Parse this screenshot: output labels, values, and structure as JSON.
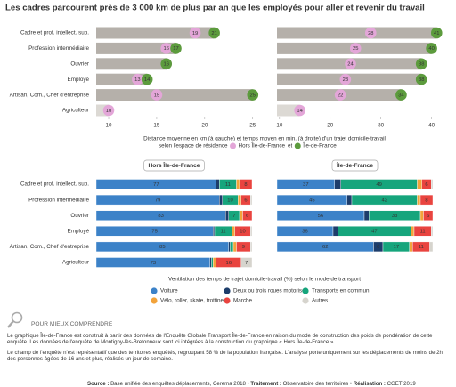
{
  "title": "Les cadres parcourent près de 3 000 km de plus par an que les employés pour aller et revenir du travail",
  "chart_data": [
    {
      "type": "dot",
      "categories": [
        "Cadre et prof. intellect. sup.",
        "Profession intermédiaire",
        "Ouvrier",
        "Employé",
        "Artisan, Com., Chef d'entreprise",
        "Agriculteur"
      ],
      "xlim": [
        8.7,
        25.3
      ],
      "xticks": [
        10,
        15,
        20,
        25
      ],
      "xlabel": [
        "Distance moyenne en km (à gauche) et temps moyen en min. (à droite) d'un trajet domicile-travail",
        "selon l'espace de résidence"
      ],
      "legend_separator": "et",
      "series": [
        {
          "name": "Hors Île-de-France",
          "color": "#e3a6d8",
          "values": [
            19,
            16,
            16,
            13,
            15,
            10
          ]
        },
        {
          "name": "Île-de-France",
          "color": "#5c9b3d",
          "values": [
            21,
            17,
            16,
            14,
            25,
            null
          ]
        }
      ]
    },
    {
      "type": "dot",
      "xlim": [
        9.5,
        40.6
      ],
      "xticks": [
        10,
        20,
        30,
        40
      ],
      "series": [
        {
          "color": "#e3a6d8",
          "values": [
            28,
            25,
            24,
            23,
            22,
            14
          ]
        },
        {
          "color": "#5c9b3d",
          "values": [
            41,
            40,
            38,
            38,
            34,
            null
          ]
        }
      ]
    },
    {
      "type": "stacked-bar",
      "title": "Hors Île-de-France",
      "categories": [
        "Cadre et prof. intellect. sup.",
        "Profession intermédiaire",
        "Ouvrier",
        "Employé",
        "Artisan, Com., Chef d'entreprise",
        "Agriculteur"
      ],
      "xlim": [
        0,
        100
      ],
      "xlabel": "Ventilation des temps de trajet domicile-travail (%) selon le mode de transport",
      "series": [
        {
          "name": "Voiture",
          "color": "#3c82c8",
          "values": [
            77,
            79,
            83,
            75,
            85,
            73
          ]
        },
        {
          "name": "Deux ou trois roues motorisés",
          "color": "#1d3d6b",
          "values": [
            2,
            2,
            2,
            1,
            1,
            1
          ]
        },
        {
          "name": "Transports en commun",
          "color": "#16a57c",
          "values": [
            11,
            10,
            7,
            11,
            2,
            1
          ]
        },
        {
          "name": "Vélo, roller, skate, trottinette",
          "color": "#f2a33a",
          "values": [
            2,
            2,
            2,
            2,
            2,
            2
          ]
        },
        {
          "name": "Marche",
          "color": "#e9443f",
          "values": [
            8,
            6,
            6,
            10,
            9,
            16
          ]
        },
        {
          "name": "Autres",
          "color": "#d6d4cd",
          "values": [
            0,
            1,
            0,
            1,
            1,
            7
          ]
        }
      ]
    },
    {
      "type": "stacked-bar",
      "title": "Île-de-France",
      "xlim": [
        0,
        100
      ],
      "series": [
        {
          "color": "#3c82c8",
          "values": [
            37,
            45,
            56,
            36,
            62,
            null
          ]
        },
        {
          "color": "#1d3d6b",
          "values": [
            4,
            3,
            3,
            3,
            6,
            null
          ]
        },
        {
          "color": "#16a57c",
          "values": [
            49,
            42,
            33,
            47,
            17,
            null
          ]
        },
        {
          "color": "#f2a33a",
          "values": [
            3,
            2,
            2,
            2,
            2,
            null
          ]
        },
        {
          "color": "#e9443f",
          "values": [
            6,
            8,
            6,
            11,
            11,
            null
          ]
        },
        {
          "color": "#d6d4cd",
          "values": [
            1,
            0,
            0,
            1,
            2,
            null
          ]
        }
      ]
    }
  ],
  "notes": {
    "heading": "POUR MIEUX COMPRENDRE",
    "paragraphs": [
      "Le graphique Île-de-France est construit à partir des données de l'Enquête Globale Transport Île-de-France en raison du mode de construction des poids de pondération de cette enquête. Les données de l'enquête de Montigny-lès-Bretonneux sont ici intégrées à la construction du graphique « Hors Île-de-France ».",
      "Le champ de l'enquête n'est représentatif que des territoires enquêtés, regroupant 58 % de la population française. L'analyse porte uniquement sur les déplacements de moins de 2h des personnes âgées de 16 ans et plus, réalisés un jour de semaine."
    ],
    "separator": "•",
    "source": [
      {
        "label": "Source :",
        "text": "Base unifiée des enquêtes déplacements, Cerema 2018"
      },
      {
        "label": "Traitement :",
        "text": "Observatoire des territoires"
      },
      {
        "label": "Réalisation :",
        "text": "CGET 2019"
      }
    ]
  }
}
